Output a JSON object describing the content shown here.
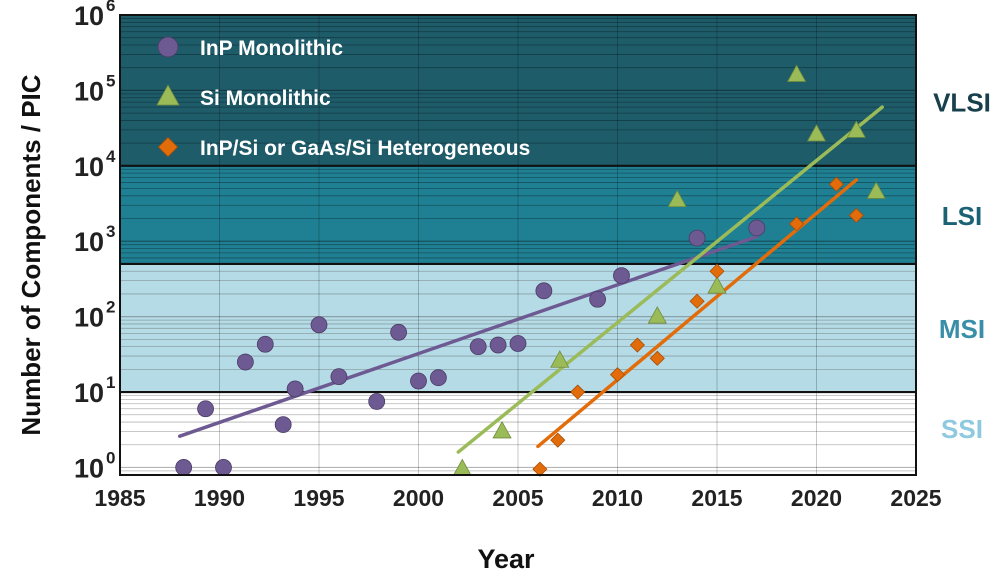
{
  "chart_data": {
    "type": "scatter",
    "xlabel": "Year",
    "ylabel": "Number of Components / PIC",
    "xlim": [
      1985,
      2025
    ],
    "ylim_log10": [
      -0.1,
      6
    ],
    "y_scale": "log",
    "x_ticks": [
      "1985",
      "1990",
      "1995",
      "2000",
      "2005",
      "2010",
      "2015",
      "2020",
      "2025"
    ],
    "y_ticks": [
      {
        "base": "10",
        "exp": "0"
      },
      {
        "base": "10",
        "exp": "1"
      },
      {
        "base": "10",
        "exp": "2"
      },
      {
        "base": "10",
        "exp": "3"
      },
      {
        "base": "10",
        "exp": "4"
      },
      {
        "base": "10",
        "exp": "5"
      },
      {
        "base": "10",
        "exp": "6"
      }
    ],
    "legend_position": "top-left",
    "grid": true,
    "bands": [
      {
        "label": "SSI",
        "from": 1,
        "to": 10,
        "color": "#ffffff",
        "label_color": "#8ec9df"
      },
      {
        "label": "MSI",
        "from": 10,
        "to": 500,
        "color": "#b4dbe6",
        "label_color": "#3a8fa8"
      },
      {
        "label": "LSI",
        "from": 500,
        "to": 10000,
        "color": "#1f7f93",
        "label_color": "#1b6275"
      },
      {
        "label": "VLSI",
        "from": 10000,
        "to": 1000000,
        "color": "#1e5c6a",
        "label_color": "#183f4c"
      }
    ],
    "series": [
      {
        "name": "InP Monolithic",
        "marker": "circle",
        "color": "#6e5a92",
        "points": [
          [
            1988.2,
            1
          ],
          [
            1989.3,
            6
          ],
          [
            1990.2,
            1
          ],
          [
            1991.3,
            25
          ],
          [
            1992.3,
            43
          ],
          [
            1993.8,
            11
          ],
          [
            1993.2,
            3.7
          ],
          [
            1995,
            78
          ],
          [
            1996,
            16
          ],
          [
            1997.9,
            7.5
          ],
          [
            1999,
            62
          ],
          [
            2000,
            14
          ],
          [
            2001,
            15.5
          ],
          [
            2003,
            40
          ],
          [
            2004,
            42
          ],
          [
            2005,
            44
          ],
          [
            2006.3,
            220
          ],
          [
            2009,
            170
          ],
          [
            2010.2,
            350
          ],
          [
            2014,
            1100
          ],
          [
            2017,
            1500
          ]
        ],
        "trend": [
          [
            1988,
            2.6
          ],
          [
            2017,
            1150
          ]
        ]
      },
      {
        "name": "Si Monolithic",
        "marker": "triangle",
        "color": "#9bbb59",
        "points": [
          [
            2002.2,
            0.95
          ],
          [
            2004.2,
            3
          ],
          [
            2007.1,
            26
          ],
          [
            2012,
            100
          ],
          [
            2013,
            3500
          ],
          [
            2015,
            250
          ],
          [
            2019,
            160000
          ],
          [
            2020,
            26000
          ],
          [
            2022,
            29000
          ],
          [
            2023,
            4500
          ]
        ],
        "trend": [
          [
            2002,
            1.6
          ],
          [
            2023.3,
            60000
          ]
        ]
      },
      {
        "name": "InP/Si or GaAs/Si Heterogeneous",
        "marker": "diamond",
        "color": "#e36c0a",
        "points": [
          [
            2006.1,
            0.95
          ],
          [
            2007,
            2.3
          ],
          [
            2008,
            10
          ],
          [
            2010,
            17
          ],
          [
            2011,
            42
          ],
          [
            2012,
            28
          ],
          [
            2014,
            160
          ],
          [
            2015,
            400
          ],
          [
            2019,
            1700
          ],
          [
            2021,
            5700
          ],
          [
            2022,
            2200
          ]
        ],
        "trend": [
          [
            2006,
            1.9
          ],
          [
            2022,
            6500
          ]
        ]
      }
    ]
  }
}
